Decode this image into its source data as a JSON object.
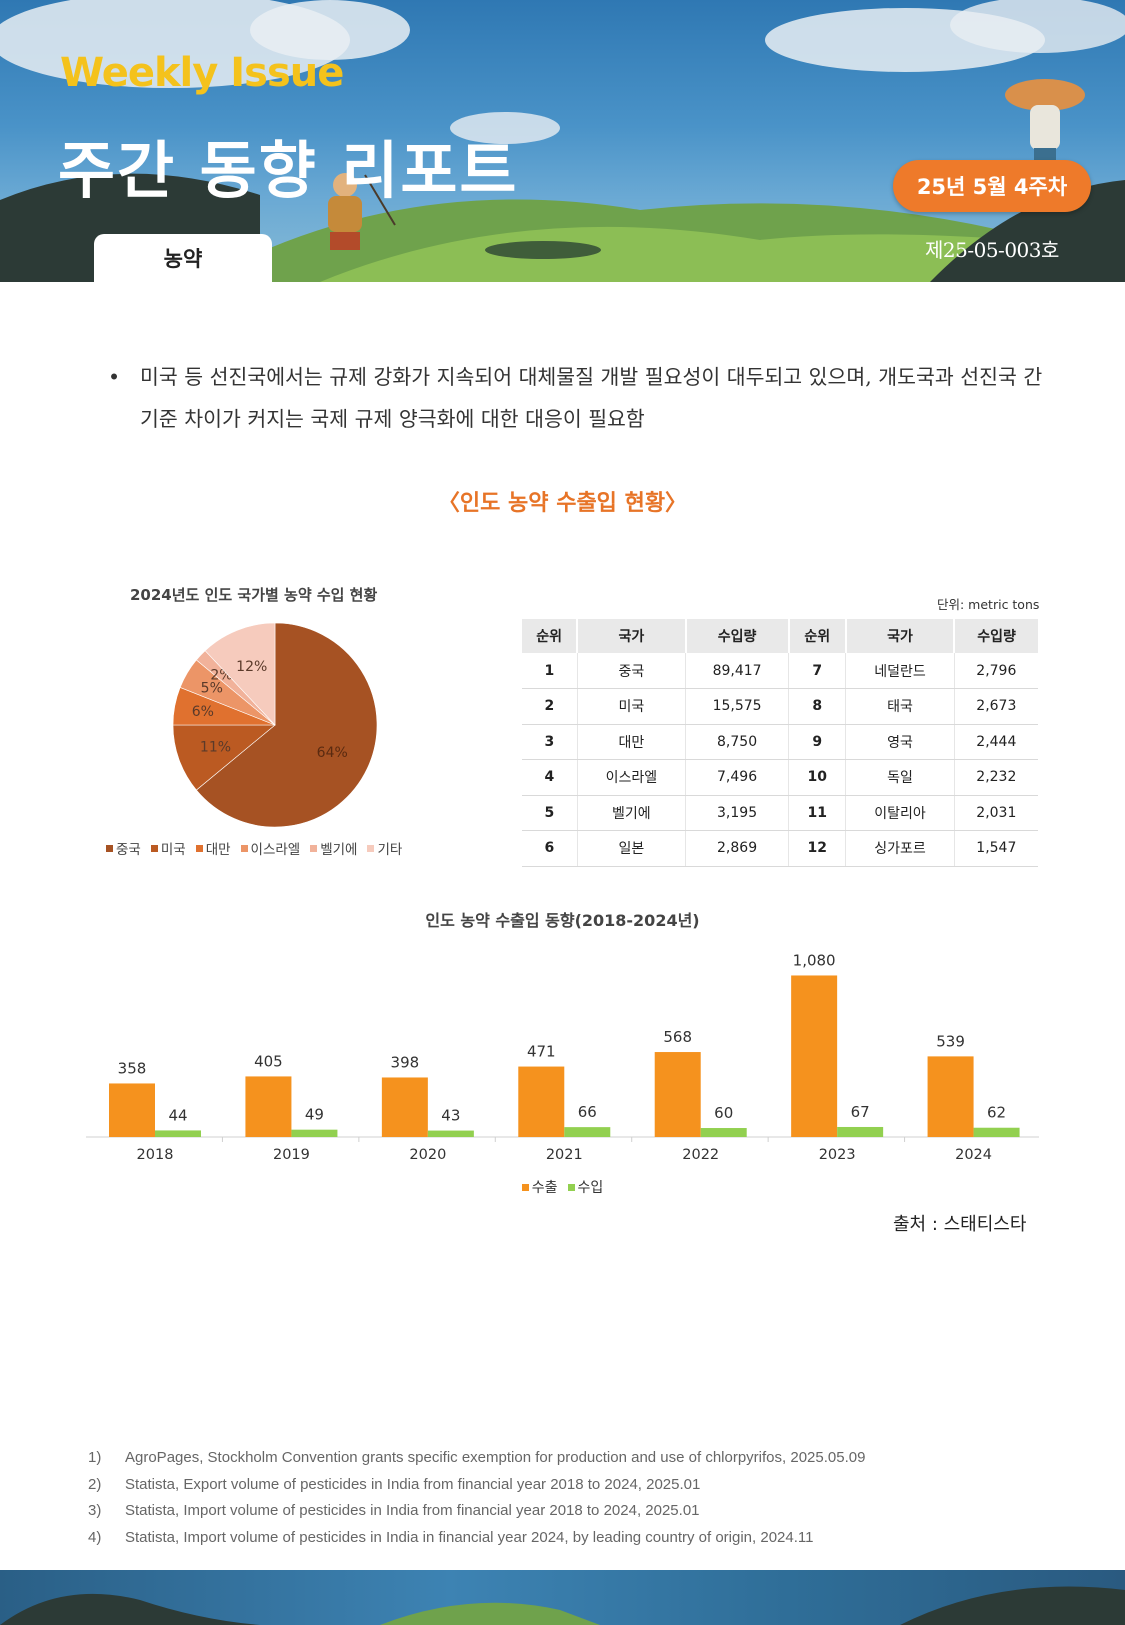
{
  "header": {
    "weekly_label": "Weekly Issue",
    "title": "주간 동향 리포트",
    "issue_week": "25년 5월 4주차",
    "issue_number": "제25-05-003호",
    "category": "농약"
  },
  "body": {
    "bullet_symbol": "•",
    "bullet_text": "미국 등 선진국에서는 규제 강화가 지속되어 대체물질 개발 필요성이 대두되고 있으며, 개도국과 선진국 간 기준 차이가 커지는 국제 규제 양극화에 대한 대응이 필요함",
    "section_title": "〈인도 농약 수출입 현황〉",
    "source": "출처 : 스태티스타"
  },
  "table": {
    "unit": "단위: metric tons",
    "headers": [
      "순위",
      "국가",
      "수입량",
      "순위",
      "국가",
      "수입량"
    ],
    "rows": [
      [
        "1",
        "중국",
        "89,417",
        "7",
        "네덜란드",
        "2,796"
      ],
      [
        "2",
        "미국",
        "15,575",
        "8",
        "태국",
        "2,673"
      ],
      [
        "3",
        "대만",
        "8,750",
        "9",
        "영국",
        "2,444"
      ],
      [
        "4",
        "이스라엘",
        "7,496",
        "10",
        "독일",
        "2,232"
      ],
      [
        "5",
        "벨기에",
        "3,195",
        "11",
        "이탈리아",
        "2,031"
      ],
      [
        "6",
        "일본",
        "2,869",
        "12",
        "싱가포르",
        "1,547"
      ]
    ]
  },
  "chart_data": [
    {
      "type": "pie",
      "title": "2024년도 인도 국가별 농약 수입 현황",
      "categories": [
        "중국",
        "미국",
        "대만",
        "이스라엘",
        "벨기에",
        "기타"
      ],
      "values": [
        64,
        11,
        6,
        5,
        2,
        12
      ],
      "labels": [
        "64%",
        "11%",
        "6%",
        "5%",
        "2%",
        "12%"
      ],
      "colors": [
        "#a65223",
        "#bb5a22",
        "#e0712f",
        "#ec9567",
        "#f1b29a",
        "#f6cbbd"
      ],
      "legend_position": "bottom"
    },
    {
      "type": "bar",
      "title": "인도 농약 수출입 동향(2018-2024년)",
      "categories": [
        "2018",
        "2019",
        "2020",
        "2021",
        "2022",
        "2023",
        "2024"
      ],
      "series": [
        {
          "name": "수출",
          "values": [
            358,
            405,
            398,
            471,
            568,
            1080,
            539
          ],
          "labels": [
            "358",
            "405",
            "398",
            "471",
            "568",
            "1,080",
            "539"
          ],
          "color": "#f5921e"
        },
        {
          "name": "수입",
          "values": [
            44,
            49,
            43,
            66,
            60,
            67,
            62
          ],
          "labels": [
            "44",
            "49",
            "43",
            "66",
            "60",
            "67",
            "62"
          ],
          "color": "#92d050"
        }
      ],
      "ylim": [
        0,
        1150
      ],
      "grid": false,
      "legend_position": "bottom"
    }
  ],
  "footnotes": [
    {
      "n": "1)",
      "text": "AgroPages, Stockholm Convention grants specific exemption for production and use of chlorpyrifos, 2025.05.09"
    },
    {
      "n": "2)",
      "text": "Statista, Export volume of pesticides in India from financial year 2018 to 2024, 2025.01"
    },
    {
      "n": "3)",
      "text": "Statista, Import volume of pesticides in India from financial year 2018 to 2024, 2025.01"
    },
    {
      "n": "4)",
      "text": "Statista, Import volume of pesticides in India in financial year 2024, by leading country of origin, 2024.11"
    }
  ]
}
